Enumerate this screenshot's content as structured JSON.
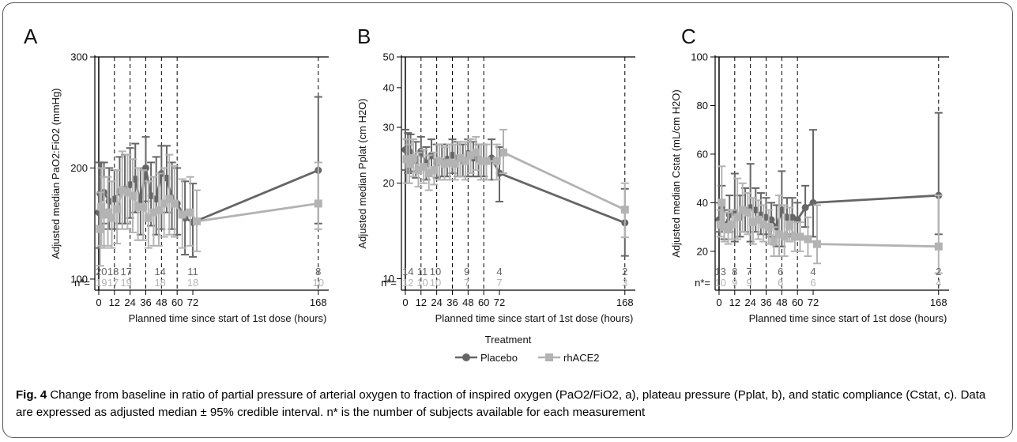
{
  "figure": {
    "xlabel": "Planned time since start of 1st dose (hours)",
    "n_label": "n*=",
    "legend_title": "Treatment",
    "caption": {
      "fig_label": "Fig. 4",
      "text": "Change from baseline in ratio of partial pressure of arterial oxygen to fraction of inspired oxygen (PaO2/FiO2, a), plateau pressure (Pplat, b), and static compliance (Cstat, c). Data are expressed as adjusted median ± 95% credible interval. n* is the number of subjects available for each measurement"
    }
  },
  "colors": {
    "placebo": "#666666",
    "rhace2": "#b3b3b3",
    "axis": "#000000"
  },
  "chart_data": [
    {
      "panel": "A",
      "type": "line",
      "title": "",
      "ylabel": "Adjusted median PaO2:FiO2 (mmHg)",
      "xlabel": "Planned time since start of 1st dose (hours)",
      "ylim": [
        90,
        300
      ],
      "yticks": [
        100,
        200,
        300
      ],
      "xticks": [
        0,
        12,
        24,
        36,
        48,
        60,
        72,
        168
      ],
      "vlines": [
        12,
        24,
        36,
        48,
        60
      ],
      "n_counts": [
        {
          "x": 2,
          "placebo": "20",
          "rhace2": "19"
        },
        {
          "x": 11,
          "placebo": "18",
          "rhace2": "17"
        },
        {
          "x": 21,
          "placebo": "17",
          "rhace2": "19"
        },
        {
          "x": 47,
          "placebo": "14",
          "rhace2": "18"
        },
        {
          "x": 72,
          "placebo": "11",
          "rhace2": "18"
        },
        {
          "x": 168,
          "placebo": "8",
          "rhace2": "10"
        }
      ],
      "series": [
        {
          "name": "Placebo",
          "x": [
            0,
            1,
            2,
            4,
            8,
            12,
            16,
            20,
            24,
            28,
            32,
            36,
            40,
            44,
            48,
            52,
            56,
            60,
            66,
            72,
            168
          ],
          "y": [
            160,
            177,
            173,
            178,
            170,
            172,
            179,
            181,
            185,
            190,
            168,
            200,
            175,
            172,
            195,
            191,
            173,
            168,
            155,
            151,
            198
          ],
          "lo": [
            128,
            148,
            145,
            150,
            145,
            145,
            150,
            150,
            155,
            160,
            140,
            170,
            148,
            140,
            145,
            160,
            145,
            140,
            122,
            120,
            150
          ],
          "hi": [
            205,
            205,
            205,
            205,
            200,
            198,
            210,
            212,
            218,
            222,
            200,
            228,
            205,
            210,
            220,
            220,
            205,
            200,
            188,
            186,
            264
          ]
        },
        {
          "name": "rhACE2",
          "x": [
            1,
            2,
            4,
            7,
            10,
            14,
            18,
            22,
            26,
            30,
            34,
            38,
            42,
            46,
            50,
            54,
            58,
            64,
            70,
            75,
            168
          ],
          "y": [
            145,
            165,
            158,
            160,
            155,
            163,
            180,
            178,
            175,
            165,
            165,
            155,
            160,
            162,
            168,
            172,
            168,
            158,
            160,
            152,
            168
          ],
          "lo": [
            112,
            130,
            128,
            130,
            128,
            132,
            145,
            145,
            142,
            135,
            135,
            128,
            130,
            130,
            138,
            140,
            138,
            128,
            130,
            125,
            145
          ],
          "hi": [
            178,
            200,
            192,
            192,
            188,
            198,
            215,
            212,
            208,
            200,
            198,
            188,
            192,
            195,
            200,
            212,
            202,
            190,
            192,
            180,
            205
          ]
        }
      ]
    },
    {
      "panel": "B",
      "type": "line",
      "title": "",
      "ylabel": "Adjusted median Pplat (cm H2O)",
      "xlabel": "Planned time since start of 1st dose (hours)",
      "yscale": "log",
      "ylim": [
        9.2,
        50
      ],
      "yticks": [
        10,
        20,
        30,
        40,
        50
      ],
      "xticks": [
        0,
        12,
        24,
        36,
        48,
        60,
        72,
        168
      ],
      "vlines": [
        12,
        24,
        36,
        48,
        60
      ],
      "n_counts": [
        {
          "x": 2,
          "placebo": "14",
          "rhace2": "12"
        },
        {
          "x": 13,
          "placebo": "11",
          "rhace2": "10"
        },
        {
          "x": 23,
          "placebo": "10",
          "rhace2": "10"
        },
        {
          "x": 47,
          "placebo": "9",
          "rhace2": "7"
        },
        {
          "x": 72,
          "placebo": "4",
          "rhace2": "7"
        },
        {
          "x": 168,
          "placebo": "2",
          "rhace2": "3"
        }
      ],
      "series": [
        {
          "name": "Placebo",
          "x": [
            0,
            2,
            4,
            8,
            12,
            16,
            20,
            24,
            28,
            32,
            36,
            40,
            44,
            48,
            52,
            56,
            60,
            66,
            72,
            168
          ],
          "y": [
            25.5,
            24.8,
            25.0,
            23.5,
            25.2,
            23.0,
            24.5,
            23.2,
            23.4,
            23.8,
            24.5,
            24.0,
            23.5,
            24.8,
            24.0,
            23.8,
            23.5,
            24.0,
            21.5,
            15.0
          ],
          "lo": [
            22.0,
            21.5,
            21.8,
            20.8,
            22.0,
            20.5,
            21.5,
            20.8,
            21.0,
            21.0,
            21.5,
            21.0,
            21.0,
            21.0,
            21.0,
            21.0,
            21.0,
            20.5,
            17.5,
            11.8
          ],
          "hi": [
            29.5,
            28.8,
            28.5,
            27.0,
            28.0,
            26.0,
            27.5,
            26.5,
            26.5,
            26.5,
            27.5,
            27.0,
            26.5,
            27.5,
            27.0,
            26.5,
            26.5,
            27.5,
            26.0,
            19.2
          ]
        },
        {
          "name": "rhACE2",
          "x": [
            1,
            3,
            6,
            10,
            14,
            18,
            22,
            26,
            30,
            34,
            38,
            42,
            46,
            50,
            54,
            58,
            62,
            70,
            75,
            168
          ],
          "y": [
            23.8,
            23.0,
            24.0,
            22.0,
            22.5,
            21.5,
            22.0,
            23.5,
            23.0,
            23.2,
            23.0,
            24.0,
            23.5,
            24.5,
            25.0,
            23.5,
            23.5,
            23.5,
            25.0,
            16.5
          ],
          "lo": [
            20.0,
            20.0,
            21.0,
            19.5,
            20.0,
            19.0,
            19.8,
            20.5,
            20.5,
            20.5,
            20.5,
            21.0,
            20.5,
            21.5,
            22.0,
            20.5,
            20.5,
            20.5,
            21.5,
            13.5
          ],
          "hi": [
            27.5,
            26.5,
            27.5,
            25.0,
            25.5,
            24.5,
            25.0,
            26.5,
            26.0,
            26.5,
            26.5,
            27.0,
            27.0,
            27.5,
            28.0,
            26.5,
            26.5,
            26.5,
            29.5,
            20.0
          ]
        }
      ]
    },
    {
      "panel": "C",
      "type": "line",
      "title": "",
      "ylabel": "Adjusted median Cstat (mL/cm H2O)",
      "xlabel": "Planned time since start of 1st dose (hours)",
      "ylim": [
        4,
        100
      ],
      "yticks": [
        20,
        40,
        60,
        80,
        100
      ],
      "xticks": [
        0,
        12,
        24,
        36,
        48,
        60,
        72,
        168
      ],
      "vlines": [
        12,
        24,
        36,
        48,
        60
      ],
      "n_counts": [
        {
          "x": 1,
          "placebo": "13",
          "rhace2": "10"
        },
        {
          "x": 12,
          "placebo": "8",
          "rhace2": "9"
        },
        {
          "x": 23,
          "placebo": "7",
          "rhace2": "9"
        },
        {
          "x": 47,
          "placebo": "6",
          "rhace2": "6"
        },
        {
          "x": 72,
          "placebo": "4",
          "rhace2": "6"
        },
        {
          "x": 168,
          "placebo": "2",
          "rhace2": "4"
        }
      ],
      "series": [
        {
          "name": "Placebo",
          "x": [
            0,
            2,
            4,
            8,
            12,
            16,
            20,
            24,
            28,
            32,
            36,
            40,
            44,
            48,
            52,
            56,
            60,
            66,
            72,
            168
          ],
          "y": [
            33,
            38,
            30,
            35,
            36,
            34,
            37,
            38,
            37,
            35,
            34,
            33,
            30,
            37,
            34,
            34,
            33,
            38,
            40,
            43
          ],
          "lo": [
            28,
            30,
            25,
            28,
            24,
            26,
            28,
            24,
            28,
            27,
            27,
            26,
            22,
            22,
            26,
            27,
            26,
            30,
            26,
            27
          ],
          "hi": [
            40,
            47,
            37,
            43,
            52,
            43,
            46,
            56,
            46,
            44,
            42,
            40,
            39,
            53,
            42,
            42,
            40,
            47,
            70,
            77
          ]
        },
        {
          "name": "rhACE2",
          "x": [
            1,
            2,
            4,
            7,
            10,
            14,
            18,
            22,
            26,
            30,
            34,
            38,
            42,
            46,
            50,
            54,
            58,
            62,
            68,
            75,
            168
          ],
          "y": [
            31,
            40,
            30,
            29,
            31,
            34,
            37,
            36,
            32,
            33,
            31,
            30,
            24,
            27,
            26,
            31,
            26,
            26,
            25,
            23,
            22
          ],
          "lo": [
            26,
            30,
            24,
            23,
            25,
            25,
            28,
            27,
            23,
            25,
            24,
            23,
            18,
            18,
            18,
            24,
            20,
            20,
            18,
            15,
            11
          ],
          "hi": [
            37,
            55,
            36,
            36,
            37,
            50,
            48,
            44,
            42,
            41,
            39,
            37,
            30,
            43,
            39,
            38,
            32,
            32,
            34,
            39,
            43
          ]
        }
      ]
    }
  ]
}
